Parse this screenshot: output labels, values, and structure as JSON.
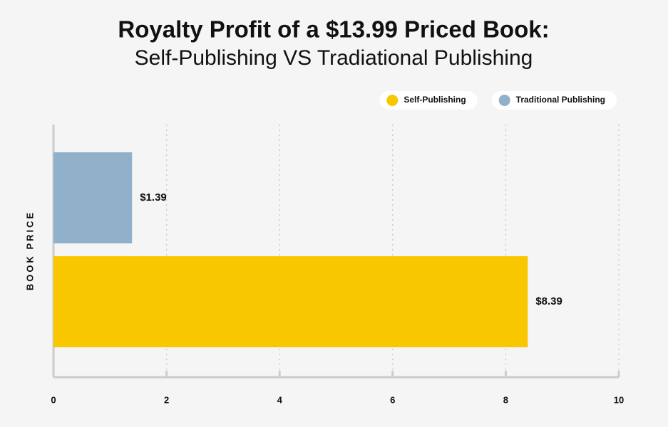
{
  "chart_data": {
    "type": "bar",
    "orientation": "horizontal",
    "title": "Royalty Profit of a $13.99 Priced Book:",
    "subtitle": "Self-Publishing VS Tradiational Publishing",
    "y_label": "BOOK PRICE",
    "categories": [
      null
    ],
    "series": [
      {
        "name": "Self-Publishing",
        "color": "#f9c700",
        "values": [
          8.39
        ],
        "value_labels": [
          "$8.39"
        ]
      },
      {
        "name": "Traditional Publishing",
        "color": "#91b1cb",
        "values": [
          1.39
        ],
        "value_labels": [
          "$1.39"
        ]
      }
    ],
    "xlim": [
      0,
      10
    ],
    "xticks": [
      0,
      2,
      4,
      6,
      8,
      10
    ],
    "grid": true,
    "legend": "top-right"
  }
}
